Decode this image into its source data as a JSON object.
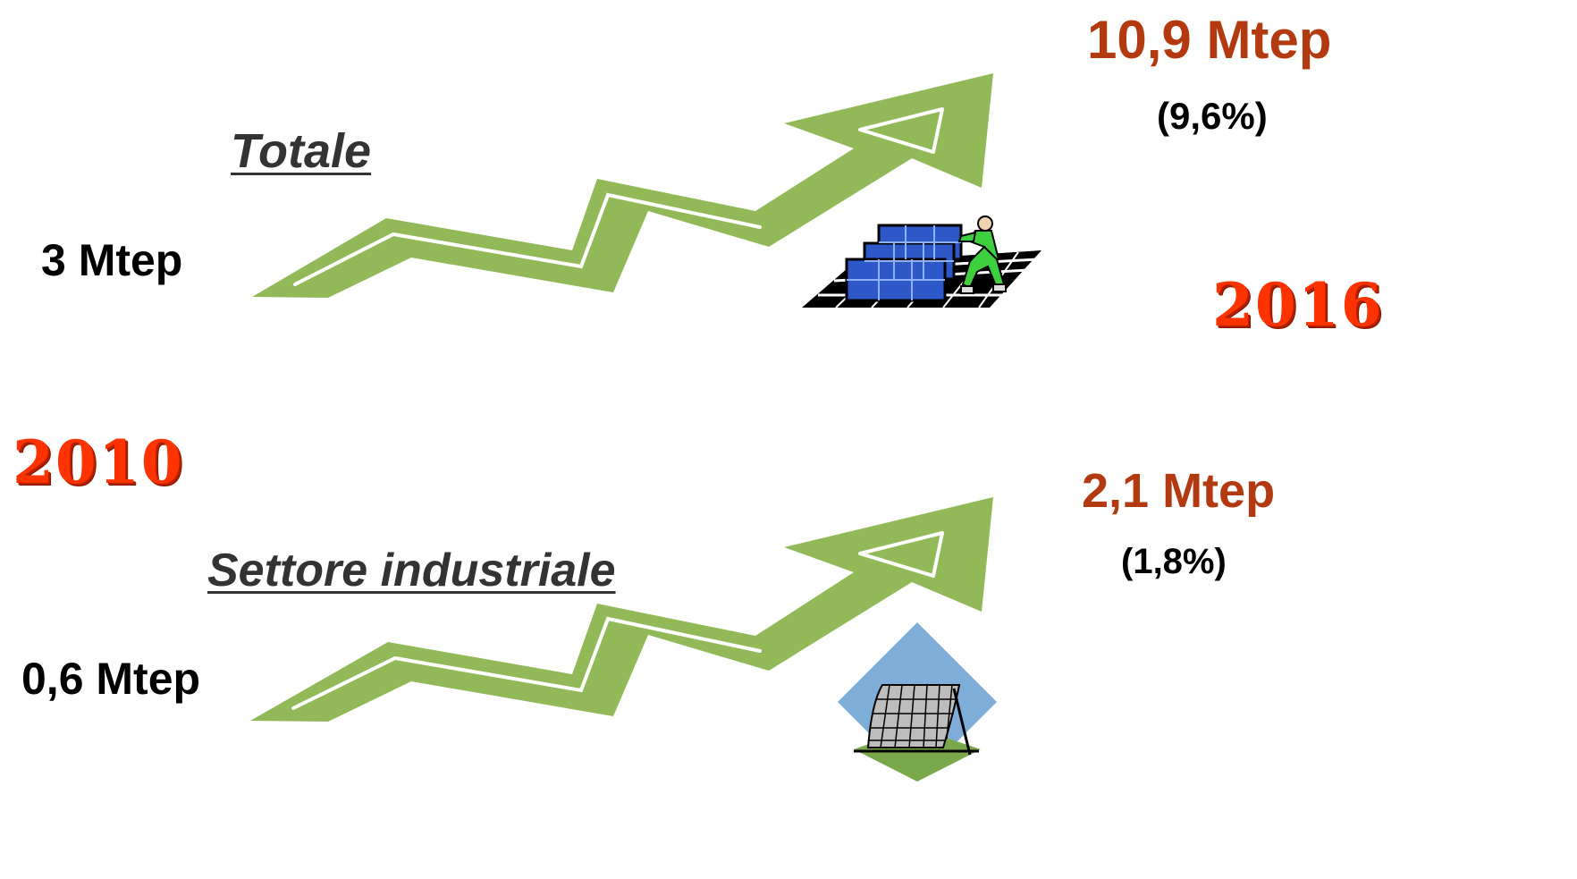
{
  "colors": {
    "arrow_fill": "#92b957",
    "start_value": "#000000",
    "end_value": "#b33a10",
    "year": "#ff3300",
    "heading": "#333333"
  },
  "years": {
    "start": "2010",
    "end": "2016"
  },
  "total": {
    "heading": "Totale",
    "start_value": "3 Mtep",
    "end_value": "10,9 Mtep",
    "end_share": "(9,6%)",
    "icon": "solar-panel-installer-icon"
  },
  "industrial": {
    "heading": "Settore industriale",
    "start_value": "0,6 Mtep",
    "end_value": "2,1 Mtep",
    "end_share": "(1,8%)",
    "icon": "solar-collector-icon"
  }
}
